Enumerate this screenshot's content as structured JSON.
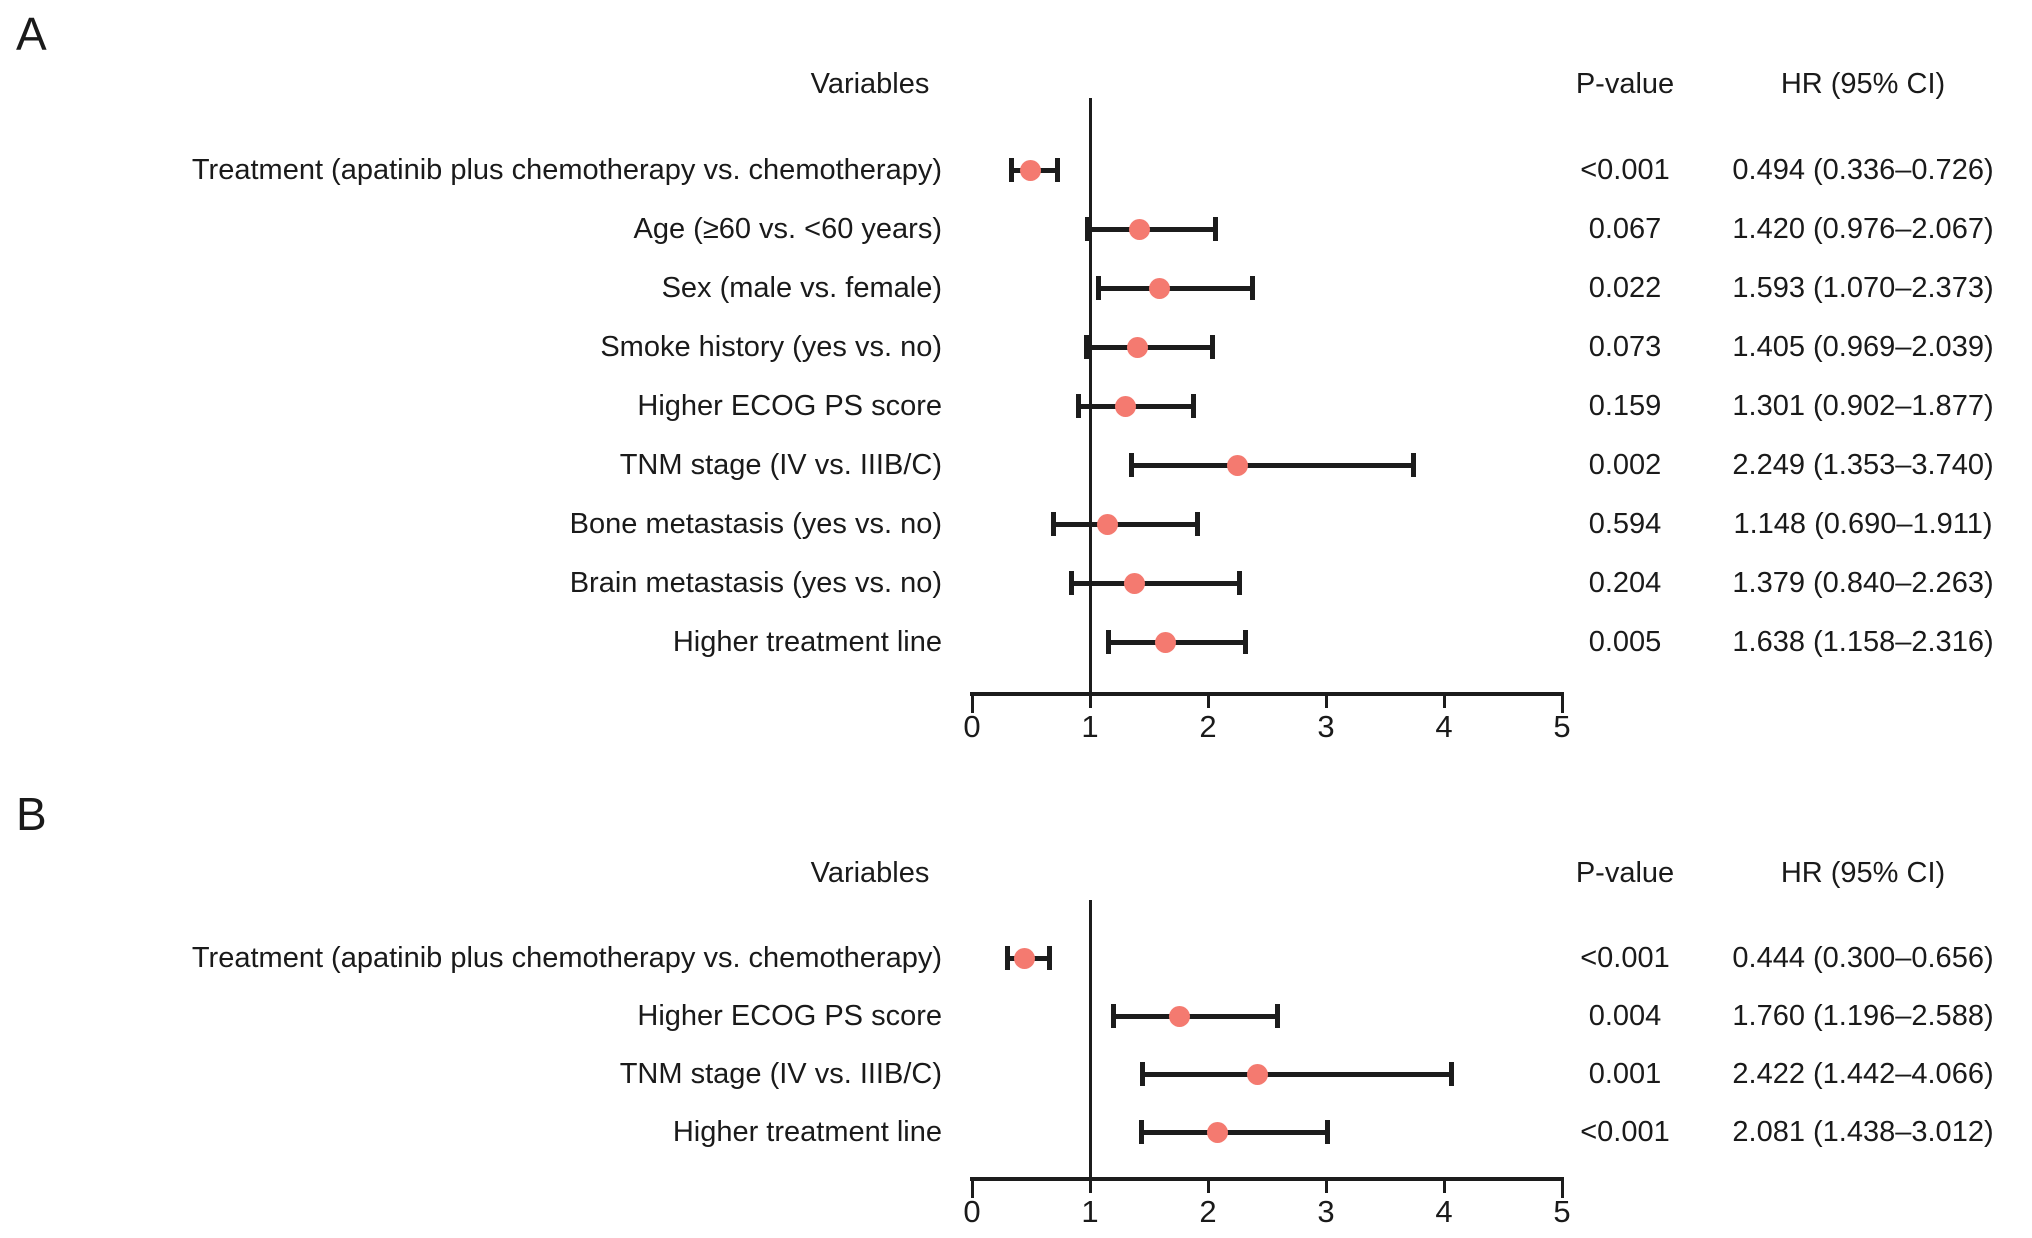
{
  "figure": {
    "background_color": "#ffffff",
    "marker_color": "#f47a70",
    "line_color": "#1c1c1c",
    "text_color": "#1a1a1a"
  },
  "chart_data": [
    {
      "type": "scatter",
      "subtype": "forest-plot",
      "panel_label": "A",
      "headers": {
        "variables": "Variables",
        "p_value": "P-value",
        "hr_ci": "HR (95% CI)"
      },
      "x_axis": {
        "min": 0,
        "max": 5,
        "ticks": [
          0,
          1,
          2,
          3,
          4,
          5
        ],
        "reference_line": 1,
        "grid": false
      },
      "rows": [
        {
          "label": "Treatment (apatinib plus chemotherapy vs. chemotherapy)",
          "p_value": "<0.001",
          "hr_ci": "0.494 (0.336–0.726)",
          "hr": 0.494,
          "ci_low": 0.336,
          "ci_high": 0.726
        },
        {
          "label": "Age (≥60 vs. <60 years)",
          "p_value": "0.067",
          "hr_ci": "1.420 (0.976–2.067)",
          "hr": 1.42,
          "ci_low": 0.976,
          "ci_high": 2.067
        },
        {
          "label": "Sex (male vs. female)",
          "p_value": "0.022",
          "hr_ci": "1.593 (1.070–2.373)",
          "hr": 1.593,
          "ci_low": 1.07,
          "ci_high": 2.373
        },
        {
          "label": "Smoke history (yes vs. no)",
          "p_value": "0.073",
          "hr_ci": "1.405 (0.969–2.039)",
          "hr": 1.405,
          "ci_low": 0.969,
          "ci_high": 2.039
        },
        {
          "label": "Higher ECOG PS score",
          "p_value": "0.159",
          "hr_ci": "1.301 (0.902–1.877)",
          "hr": 1.301,
          "ci_low": 0.902,
          "ci_high": 1.877
        },
        {
          "label": "TNM stage (IV vs. IIIB/C)",
          "p_value": "0.002",
          "hr_ci": "2.249 (1.353–3.740)",
          "hr": 2.249,
          "ci_low": 1.353,
          "ci_high": 3.74
        },
        {
          "label": "Bone metastasis (yes vs. no)",
          "p_value": "0.594",
          "hr_ci": "1.148 (0.690–1.911)",
          "hr": 1.148,
          "ci_low": 0.69,
          "ci_high": 1.911
        },
        {
          "label": "Brain metastasis (yes vs. no)",
          "p_value": "0.204",
          "hr_ci": "1.379 (0.840–2.263)",
          "hr": 1.379,
          "ci_low": 0.84,
          "ci_high": 2.263
        },
        {
          "label": "Higher treatment line",
          "p_value": "0.005",
          "hr_ci": "1.638 (1.158–2.316)",
          "hr": 1.638,
          "ci_low": 1.158,
          "ci_high": 2.316
        }
      ]
    },
    {
      "type": "scatter",
      "subtype": "forest-plot",
      "panel_label": "B",
      "headers": {
        "variables": "Variables",
        "p_value": "P-value",
        "hr_ci": "HR (95% CI)"
      },
      "x_axis": {
        "min": 0,
        "max": 5,
        "ticks": [
          0,
          1,
          2,
          3,
          4,
          5
        ],
        "reference_line": 1,
        "grid": false
      },
      "rows": [
        {
          "label": "Treatment (apatinib plus chemotherapy vs. chemotherapy)",
          "p_value": "<0.001",
          "hr_ci": "0.444 (0.300–0.656)",
          "hr": 0.444,
          "ci_low": 0.3,
          "ci_high": 0.656
        },
        {
          "label": "Higher ECOG PS score",
          "p_value": "0.004",
          "hr_ci": "1.760 (1.196–2.588)",
          "hr": 1.76,
          "ci_low": 1.196,
          "ci_high": 2.588
        },
        {
          "label": "TNM stage (IV vs. IIIB/C)",
          "p_value": "0.001",
          "hr_ci": "2.422 (1.442–4.066)",
          "hr": 2.422,
          "ci_low": 1.442,
          "ci_high": 4.066
        },
        {
          "label": "Higher treatment line",
          "p_value": "<0.001",
          "hr_ci": "2.081 (1.438–3.012)",
          "hr": 2.081,
          "ci_low": 1.438,
          "ci_high": 3.012
        }
      ]
    }
  ]
}
